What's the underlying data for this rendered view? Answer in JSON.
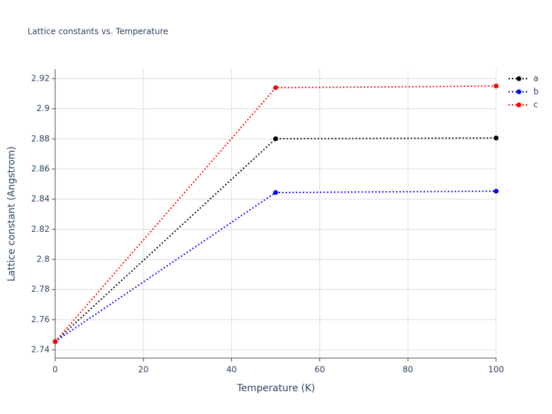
{
  "chart_data": {
    "type": "line",
    "title": "Lattice constants vs. Temperature",
    "x_label": "Temperature (K)",
    "y_label": "Lattice constant (Angstrom)",
    "x": [
      0,
      50,
      100
    ],
    "series": [
      {
        "name": "a",
        "color": "#000000",
        "values": [
          2.7455,
          2.8801,
          2.8806
        ]
      },
      {
        "name": "b",
        "color": "#0000ff",
        "values": [
          2.7455,
          2.8444,
          2.8453
        ]
      },
      {
        "name": "c",
        "color": "#ff0000",
        "values": [
          2.7455,
          2.914,
          2.9151
        ]
      }
    ],
    "xlim": [
      0,
      100
    ],
    "xticks": [
      0,
      20,
      40,
      60,
      80,
      100
    ],
    "ylim": [
      2.7345,
      2.9264
    ],
    "yticks": [
      2.74,
      2.76,
      2.78,
      2.8,
      2.82,
      2.84,
      2.86,
      2.88,
      2.9,
      2.92
    ],
    "grid": true,
    "legend": "top-right"
  }
}
